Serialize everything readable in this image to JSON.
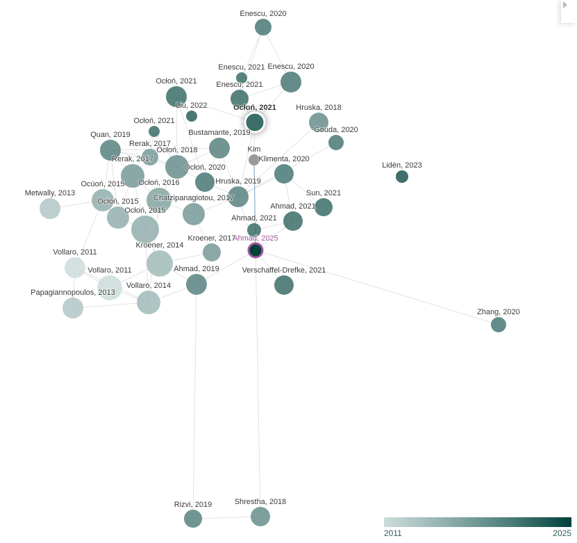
{
  "graph": {
    "nodes": [
      {
        "label": "Enescu, 2020",
        "year": 2020
      },
      {
        "label": "Enescu, 2021",
        "year": 2021
      },
      {
        "label": "Enescu, 2020",
        "year": 2020
      },
      {
        "label": "Enescu, 2021",
        "year": 2021
      },
      {
        "label": "Ocłoń, 2021",
        "year": 2021
      },
      {
        "label": "Liu, 2022",
        "year": 2022
      },
      {
        "label": "Ocłoń, 2021",
        "year": 2021,
        "state": "selected"
      },
      {
        "label": "Ocłoń, 2021",
        "year": 2021
      },
      {
        "label": "Hruska, 2018",
        "year": 2018
      },
      {
        "label": "Gouda, 2020",
        "year": 2020
      },
      {
        "label": "Quan, 2019",
        "year": 2019
      },
      {
        "label": "Rerak, 2017",
        "year": 2017
      },
      {
        "label": "Bustamante, 2019",
        "year": 2019
      },
      {
        "label": "Ocłoń, 2018",
        "year": 2018
      },
      {
        "label": "Kim",
        "year": null
      },
      {
        "label": "Klimenta, 2020",
        "year": 2020
      },
      {
        "label": "Rerak, 2017",
        "year": 2017
      },
      {
        "label": "Ocłoń, 2020",
        "year": 2020
      },
      {
        "label": "Lidén, 2023",
        "year": 2023
      },
      {
        "label": "Hruska, 2019",
        "year": 2019
      },
      {
        "label": "Ocùoń, 2015",
        "year": 2015
      },
      {
        "label": "Ocłoń, 2016",
        "year": 2016
      },
      {
        "label": "Metwally, 2013",
        "year": 2013
      },
      {
        "label": "Sun, 2021",
        "year": 2021
      },
      {
        "label": "Chatzipanagiotou, 2017",
        "year": 2017
      },
      {
        "label": "Ocłoń, 2015",
        "year": 2015
      },
      {
        "label": "Ocłoń, 2015",
        "year": 2015
      },
      {
        "label": "Ahmad, 2021",
        "year": 2021
      },
      {
        "label": "Ahmad, 2021",
        "year": 2021
      },
      {
        "label": "Ahmad, 2025",
        "year": 2025,
        "state": "origin"
      },
      {
        "label": "Kroener, 2017",
        "year": 2017
      },
      {
        "label": "Kroener, 2014",
        "year": 2014
      },
      {
        "label": "Vollaro, 2011",
        "year": 2011
      },
      {
        "label": "Ahmad, 2019",
        "year": 2019
      },
      {
        "label": "Verschaffel-Drefke, 2021",
        "year": 2021
      },
      {
        "label": "Vollaro, 2011",
        "year": 2011
      },
      {
        "label": "Vollaro, 2014",
        "year": 2014
      },
      {
        "label": "Papagiannopoulos, 2013",
        "year": 2013
      },
      {
        "label": "Zhang, 2020",
        "year": 2020
      },
      {
        "label": "Rizvi, 2019",
        "year": 2019
      },
      {
        "label": "Shrestha, 2018",
        "year": 2018
      }
    ],
    "edges": [
      [
        0,
        1
      ],
      [
        0,
        3
      ],
      [
        0,
        2
      ],
      [
        1,
        3
      ],
      [
        2,
        3
      ],
      [
        2,
        6
      ],
      [
        3,
        6
      ],
      [
        4,
        6
      ],
      [
        4,
        5
      ],
      [
        4,
        13
      ],
      [
        4,
        17
      ],
      [
        6,
        14
      ],
      [
        14,
        29
      ],
      [
        6,
        19
      ],
      [
        7,
        13
      ],
      [
        7,
        16
      ],
      [
        7,
        11
      ],
      [
        10,
        11
      ],
      [
        10,
        13
      ],
      [
        10,
        12
      ],
      [
        10,
        16
      ],
      [
        10,
        20
      ],
      [
        10,
        25
      ],
      [
        11,
        13
      ],
      [
        11,
        16
      ],
      [
        12,
        17
      ],
      [
        12,
        13
      ],
      [
        13,
        17
      ],
      [
        13,
        21
      ],
      [
        16,
        21
      ],
      [
        16,
        25
      ],
      [
        16,
        26
      ],
      [
        17,
        19
      ],
      [
        19,
        15
      ],
      [
        19,
        24
      ],
      [
        21,
        24
      ],
      [
        21,
        26
      ],
      [
        20,
        22
      ],
      [
        20,
        25
      ],
      [
        20,
        32
      ],
      [
        25,
        26
      ],
      [
        26,
        31
      ],
      [
        24,
        30
      ],
      [
        31,
        30
      ],
      [
        31,
        33
      ],
      [
        33,
        29
      ],
      [
        33,
        36
      ],
      [
        28,
        29
      ],
      [
        27,
        29
      ],
      [
        28,
        27
      ],
      [
        29,
        34
      ],
      [
        29,
        19
      ],
      [
        29,
        38
      ],
      [
        32,
        35
      ],
      [
        32,
        36
      ],
      [
        32,
        37
      ],
      [
        35,
        36
      ],
      [
        37,
        36
      ],
      [
        35,
        31
      ],
      [
        8,
        19
      ],
      [
        9,
        19
      ],
      [
        15,
        23
      ],
      [
        33,
        39
      ],
      [
        39,
        40
      ],
      [
        40,
        29
      ],
      [
        21,
        36
      ],
      [
        26,
        36
      ],
      [
        12,
        19
      ],
      [
        15,
        27
      ]
    ],
    "colors": {
      "year_min": "#cddcdb",
      "year_max": "#00403c",
      "unknown": "#9a9a9a",
      "origin_ring": "#a0559a",
      "edge": "#999999",
      "kim_link": "#7aa7c7"
    }
  },
  "legend": {
    "min_label": "2011",
    "max_label": "2025"
  }
}
